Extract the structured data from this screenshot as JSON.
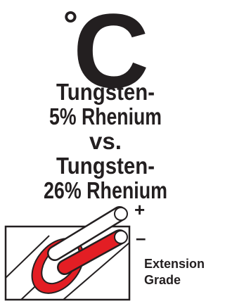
{
  "unit": {
    "degree": "°",
    "letter": "C"
  },
  "title_lines": [
    "Tungsten-",
    "5% Rhenium",
    "vs.",
    "Tungsten-",
    "26% Rhenium"
  ],
  "polarity": {
    "positive": "+",
    "negative": "–"
  },
  "grade_lines": [
    "Extension",
    "Grade"
  ]
}
